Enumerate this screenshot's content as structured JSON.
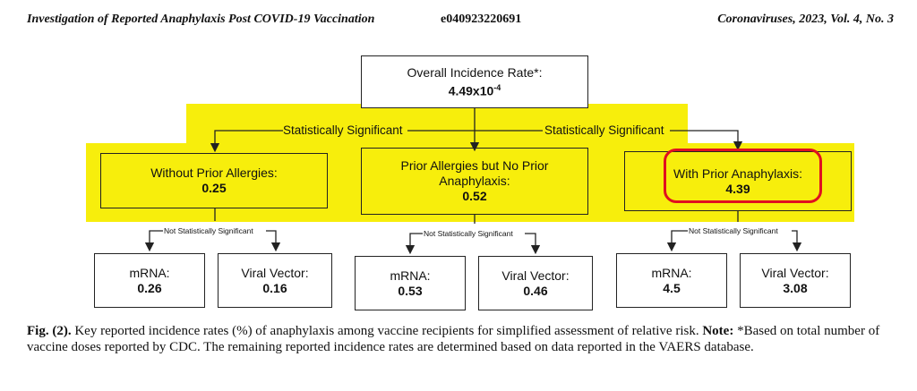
{
  "header": {
    "title": "Investigation of Reported Anaphylaxis Post COVID-19 Vaccination",
    "code": "e040923220691",
    "journal": "Coronaviruses, 2023, Vol. 4, No. 3"
  },
  "diagram": {
    "root": {
      "label": "Overall Incidence Rate*:",
      "value_base": "4.49x10",
      "value_exp": "-4"
    },
    "sig_labels": [
      "Statistically Significant",
      "Statistically Significant"
    ],
    "groups": [
      {
        "label": "Without Prior Allergies:",
        "value": "0.25",
        "ns_label": "Not Statistically Significant",
        "children": [
          {
            "label": "mRNA:",
            "value": "0.26"
          },
          {
            "label": "Viral Vector:",
            "value": "0.16"
          }
        ]
      },
      {
        "label": "Prior Allergies but No Prior Anaphylaxis:",
        "value": "0.52",
        "ns_label": "Not Statistically Significant",
        "children": [
          {
            "label": "mRNA:",
            "value": "0.53"
          },
          {
            "label": "Viral Vector:",
            "value": "0.46"
          }
        ]
      },
      {
        "label": "With Prior Anaphylaxis:",
        "value": "4.39",
        "ns_label": "Not Statistically Significant",
        "children": [
          {
            "label": "mRNA:",
            "value": "4.5"
          },
          {
            "label": "Viral Vector:",
            "value": "3.08"
          }
        ]
      }
    ]
  },
  "caption": {
    "fig": "Fig. (2).",
    "text": " Key reported incidence rates (%) of anaphylaxis among vaccine recipients for simplified assessment of relative risk. ",
    "note_label": "Note:",
    "note_text": " *Based on total number of vaccine doses reported by CDC. The remaining reported incidence rates are determined based on data reported in the VAERS database."
  },
  "colors": {
    "highlight": "#f7ee0c",
    "circle": "#e01020"
  }
}
